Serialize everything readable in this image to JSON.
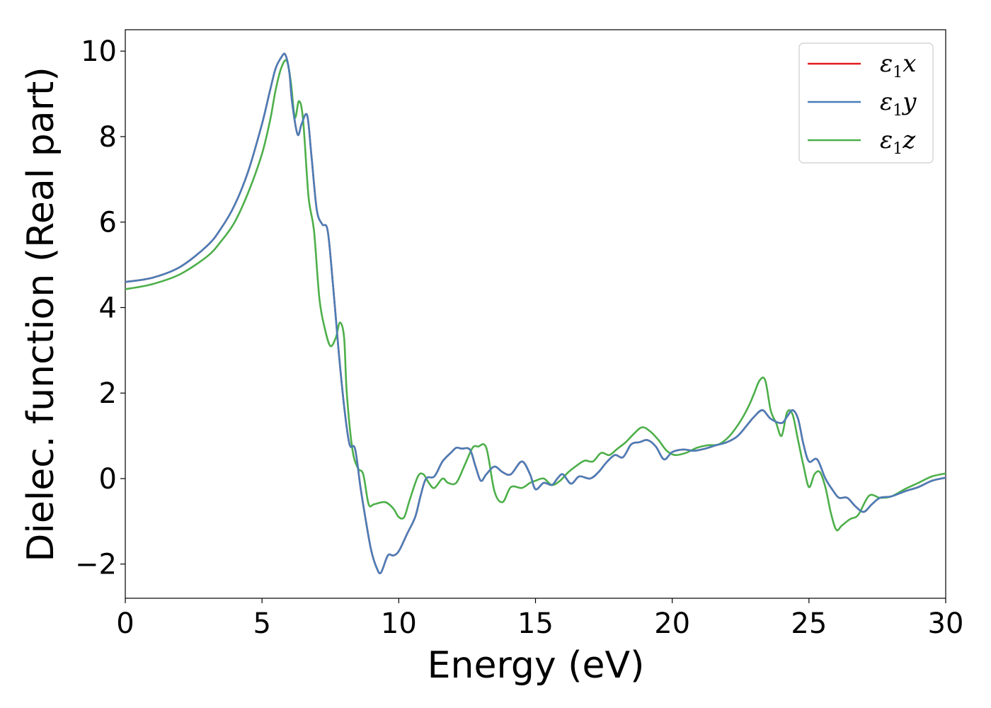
{
  "chart_data": {
    "type": "line",
    "title": "",
    "xlabel": "Energy (eV)",
    "ylabel": "Dielec. function (Real part)",
    "xlim": [
      0,
      30
    ],
    "ylim": [
      -2.8,
      10.5
    ],
    "xticks": [
      0,
      5,
      10,
      15,
      20,
      25,
      30
    ],
    "xtick_labels": [
      "0",
      "5",
      "10",
      "15",
      "20",
      "25",
      "30"
    ],
    "yticks": [
      -2,
      0,
      2,
      4,
      6,
      8,
      10
    ],
    "ytick_labels": [
      "−2",
      "0",
      "2",
      "4",
      "6",
      "8",
      "10"
    ],
    "grid": false,
    "legend_position": "top-right",
    "series": [
      {
        "name": "ε1x",
        "color": "#e41a1c",
        "x": [
          0,
          1,
          2,
          3,
          3.5,
          4,
          4.5,
          5,
          5.3,
          5.5,
          5.7,
          5.85,
          6,
          6.1,
          6.3,
          6.45,
          6.65,
          6.8,
          7,
          7.2,
          7.4,
          7.6,
          7.8,
          8,
          8.2,
          8.4,
          8.6,
          8.8,
          9,
          9.2,
          9.35,
          9.6,
          9.8,
          10,
          10.3,
          10.6,
          10.8,
          11,
          11.3,
          11.6,
          11.9,
          12.1,
          12.3,
          12.6,
          12.8,
          13,
          13.2,
          13.5,
          13.8,
          14.1,
          14.5,
          14.8,
          15,
          15.3,
          15.6,
          15.8,
          16,
          16.3,
          16.6,
          17,
          17.3,
          17.6,
          17.9,
          18.2,
          18.5,
          18.8,
          19.1,
          19.4,
          19.7,
          20,
          20.4,
          20.8,
          21.2,
          21.6,
          22,
          22.4,
          22.8,
          23,
          23.3,
          23.6,
          24,
          24.2,
          24.4,
          24.6,
          24.8,
          25,
          25.3,
          25.6,
          25.9,
          26.1,
          26.4,
          26.7,
          27,
          27.3,
          27.6,
          28,
          28.5,
          29,
          29.5,
          30
        ],
        "y": [
          4.6,
          4.7,
          4.95,
          5.45,
          5.85,
          6.4,
          7.2,
          8.3,
          9.1,
          9.6,
          9.85,
          9.92,
          9.5,
          8.8,
          8.05,
          8.3,
          8.5,
          7.6,
          6.3,
          5.95,
          5.8,
          4.5,
          3.0,
          1.7,
          0.8,
          0.7,
          -0.2,
          -1.0,
          -1.7,
          -2.1,
          -2.2,
          -1.8,
          -1.8,
          -1.7,
          -1.3,
          -0.9,
          -0.4,
          0.0,
          0.05,
          0.4,
          0.6,
          0.72,
          0.7,
          0.68,
          0.3,
          -0.05,
          0.1,
          0.28,
          0.15,
          0.1,
          0.4,
          0.1,
          -0.25,
          -0.1,
          -0.15,
          0.0,
          0.1,
          -0.12,
          0.05,
          0.0,
          0.15,
          0.38,
          0.55,
          0.5,
          0.8,
          0.85,
          0.9,
          0.75,
          0.45,
          0.62,
          0.68,
          0.65,
          0.7,
          0.78,
          0.85,
          1.0,
          1.3,
          1.45,
          1.6,
          1.4,
          1.3,
          1.45,
          1.6,
          1.4,
          0.8,
          0.4,
          0.45,
          0.0,
          -0.3,
          -0.45,
          -0.45,
          -0.65,
          -0.78,
          -0.6,
          -0.45,
          -0.42,
          -0.3,
          -0.2,
          -0.05,
          0.02
        ]
      },
      {
        "name": "ε1y",
        "color": "#4a7eb8",
        "x": [
          0,
          1,
          2,
          3,
          3.5,
          4,
          4.5,
          5,
          5.3,
          5.5,
          5.7,
          5.85,
          6,
          6.1,
          6.3,
          6.45,
          6.65,
          6.8,
          7,
          7.2,
          7.4,
          7.6,
          7.8,
          8,
          8.2,
          8.4,
          8.6,
          8.8,
          9,
          9.2,
          9.35,
          9.6,
          9.8,
          10,
          10.3,
          10.6,
          10.8,
          11,
          11.3,
          11.6,
          11.9,
          12.1,
          12.3,
          12.6,
          12.8,
          13,
          13.2,
          13.5,
          13.8,
          14.1,
          14.5,
          14.8,
          15,
          15.3,
          15.6,
          15.8,
          16,
          16.3,
          16.6,
          17,
          17.3,
          17.6,
          17.9,
          18.2,
          18.5,
          18.8,
          19.1,
          19.4,
          19.7,
          20,
          20.4,
          20.8,
          21.2,
          21.6,
          22,
          22.4,
          22.8,
          23,
          23.3,
          23.6,
          24,
          24.2,
          24.4,
          24.6,
          24.8,
          25,
          25.3,
          25.6,
          25.9,
          26.1,
          26.4,
          26.7,
          27,
          27.3,
          27.6,
          28,
          28.5,
          29,
          29.5,
          30
        ],
        "y": [
          4.6,
          4.7,
          4.95,
          5.45,
          5.85,
          6.4,
          7.2,
          8.3,
          9.1,
          9.6,
          9.85,
          9.92,
          9.5,
          8.8,
          8.05,
          8.3,
          8.5,
          7.6,
          6.3,
          5.95,
          5.8,
          4.5,
          3.0,
          1.7,
          0.8,
          0.7,
          -0.2,
          -1.0,
          -1.7,
          -2.1,
          -2.2,
          -1.8,
          -1.8,
          -1.7,
          -1.3,
          -0.9,
          -0.4,
          0.0,
          0.05,
          0.4,
          0.6,
          0.72,
          0.7,
          0.68,
          0.3,
          -0.05,
          0.1,
          0.28,
          0.15,
          0.1,
          0.4,
          0.1,
          -0.25,
          -0.1,
          -0.15,
          0.0,
          0.1,
          -0.12,
          0.05,
          0.0,
          0.15,
          0.38,
          0.55,
          0.5,
          0.8,
          0.85,
          0.9,
          0.75,
          0.45,
          0.62,
          0.68,
          0.65,
          0.7,
          0.78,
          0.85,
          1.0,
          1.3,
          1.45,
          1.6,
          1.4,
          1.3,
          1.45,
          1.6,
          1.4,
          0.8,
          0.4,
          0.45,
          0.0,
          -0.3,
          -0.45,
          -0.45,
          -0.65,
          -0.78,
          -0.6,
          -0.45,
          -0.42,
          -0.3,
          -0.2,
          -0.05,
          0.02
        ]
      },
      {
        "name": "ε1z",
        "color": "#4daf4a",
        "x": [
          0,
          1,
          2,
          3,
          3.5,
          4,
          4.5,
          5,
          5.3,
          5.5,
          5.7,
          5.9,
          6.05,
          6.2,
          6.35,
          6.5,
          6.7,
          6.9,
          7.1,
          7.3,
          7.5,
          7.7,
          7.85,
          8.0,
          8.1,
          8.3,
          8.5,
          8.7,
          8.9,
          9.1,
          9.5,
          9.8,
          10.0,
          10.2,
          10.4,
          10.7,
          10.9,
          11.1,
          11.3,
          11.6,
          11.8,
          12.1,
          12.4,
          12.7,
          12.9,
          13.2,
          13.5,
          13.8,
          14.1,
          14.5,
          14.8,
          15.0,
          15.3,
          15.6,
          15.9,
          16.2,
          16.5,
          16.8,
          17.1,
          17.4,
          17.7,
          18.0,
          18.3,
          18.6,
          18.9,
          19.2,
          19.5,
          19.8,
          20.1,
          20.5,
          20.9,
          21.3,
          21.7,
          22.1,
          22.5,
          22.8,
          23.0,
          23.2,
          23.4,
          23.6,
          23.8,
          24.0,
          24.2,
          24.4,
          24.6,
          24.8,
          25.0,
          25.2,
          25.4,
          25.6,
          25.8,
          26.0,
          26.2,
          26.5,
          26.8,
          27.2,
          27.6,
          28.0,
          28.5,
          29.0,
          29.5,
          30.0
        ],
        "y": [
          4.43,
          4.55,
          4.78,
          5.2,
          5.55,
          6.0,
          6.7,
          7.6,
          8.4,
          9.1,
          9.6,
          9.78,
          9.3,
          8.45,
          8.83,
          8.4,
          6.6,
          5.8,
          4.2,
          3.5,
          3.1,
          3.3,
          3.65,
          3.3,
          2.0,
          0.7,
          0.25,
          0.1,
          -0.6,
          -0.6,
          -0.55,
          -0.7,
          -0.9,
          -0.9,
          -0.5,
          0.05,
          0.1,
          -0.1,
          -0.22,
          0.0,
          -0.1,
          -0.1,
          0.3,
          0.72,
          0.75,
          0.72,
          -0.3,
          -0.55,
          -0.2,
          -0.22,
          -0.1,
          -0.05,
          0.0,
          -0.15,
          -0.05,
          0.15,
          0.3,
          0.42,
          0.4,
          0.6,
          0.55,
          0.7,
          0.85,
          1.05,
          1.2,
          1.1,
          0.9,
          0.65,
          0.55,
          0.6,
          0.72,
          0.78,
          0.8,
          1.0,
          1.35,
          1.7,
          2.0,
          2.3,
          2.3,
          1.6,
          1.3,
          1.0,
          1.55,
          1.5,
          0.9,
          0.3,
          -0.2,
          0.1,
          0.15,
          -0.2,
          -0.8,
          -1.2,
          -1.1,
          -0.95,
          -0.85,
          -0.4,
          -0.45,
          -0.42,
          -0.25,
          -0.1,
          0.05,
          0.12
        ]
      }
    ]
  }
}
